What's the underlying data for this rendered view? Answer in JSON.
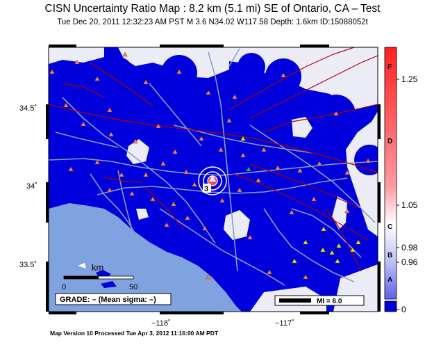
{
  "title": "CISN Uncertainty Ratio Map : 8.2 km (5.1 mi) SE of Ontario, CA – Test",
  "subtitle": "Tue Dec 20, 2011 12:32:23 AM PST    M 3.6    N34.02 W117.58    Depth: 1.6km    ID:15088052t",
  "footer": "Map Version 10 Processed Tue Apr  3, 2012 11:16:00 AM PDT",
  "axes": {
    "lat_ticks": [
      "34.5˚",
      "34˚",
      "33.5˚"
    ],
    "lon_ticks": [
      "−118˚",
      "−117˚"
    ]
  },
  "scalebar": {
    "unit": "km",
    "start": "0",
    "end": "50"
  },
  "grade_box": "GRADE: – (Mean sigma: –)",
  "magnitude_legend": "MI = 6.0",
  "epicenter_label": "3",
  "colorbar": {
    "grades": [
      "F",
      "D",
      "C",
      "B",
      "A"
    ],
    "values": [
      "1.25",
      "1.05",
      "0.98",
      "0.96",
      "0"
    ]
  },
  "colors": {
    "ocean": "#7fa3df",
    "high_uncertainty": "#0000dd",
    "low_uncertainty": "#ffffff",
    "station": "#f08060",
    "station_alt": "#f0e000",
    "road": "#8a9ec8",
    "fault": "#b00000"
  }
}
